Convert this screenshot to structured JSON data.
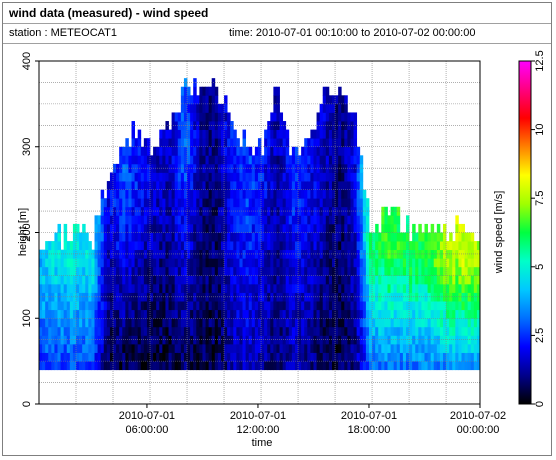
{
  "header": {
    "title": "wind data (measured) - wind speed",
    "station": "station : METEOCAT1",
    "time_range": "time: 2010-07-01 00:10:00 to 2010-07-02 00:00:00"
  },
  "chart_data": {
    "type": "heatmap",
    "xlabel": "time",
    "ylabel": "height [m]",
    "colorbar_label": "wind speed [m/s]",
    "x_range": [
      "2010-07-01 00:10:00",
      "2010-07-02 00:00:00"
    ],
    "ylim": [
      0,
      400
    ],
    "y_ticks": [
      0,
      100,
      200,
      300,
      400
    ],
    "y_tick_labels": [
      "0",
      "100",
      "200",
      "300",
      "400"
    ],
    "x_ticks": [
      "2010-07-01 06:00:00",
      "2010-07-01 12:00:00",
      "2010-07-01 18:00:00",
      "2010-07-02 00:00:00"
    ],
    "x_tick_labels": [
      {
        "date": "2010-07-01",
        "time": "06:00:00"
      },
      {
        "date": "2010-07-01",
        "time": "12:00:00"
      },
      {
        "date": "2010-07-01",
        "time": "18:00:00"
      },
      {
        "date": "2010-07-02",
        "time": "00:00:00"
      }
    ],
    "colorbar_range": [
      0,
      12.5
    ],
    "colorbar_ticks": [
      0,
      2.5,
      5,
      7.5,
      10,
      12.5
    ],
    "colorbar_tick_labels": [
      "0",
      "2.5",
      "5",
      "7.5",
      "10",
      "12.5"
    ],
    "colorscale": [
      "#000000",
      "#00008b",
      "#0000ff",
      "#0070ff",
      "#00c8ff",
      "#00ffc8",
      "#00ff40",
      "#a0ff00",
      "#ffff00",
      "#ff8000",
      "#ff0000",
      "#ff0080",
      "#ff00ff"
    ],
    "grid": true,
    "bin_height_m": 10,
    "time_bin_minutes": 10,
    "columns": [
      {
        "time": "2010-07-01 00:10:00",
        "top_m": 180,
        "speed": 4.0,
        "lower_speed": 2.5
      },
      {
        "time": "2010-07-01 01:00:00",
        "top_m": 190,
        "speed": 4.6,
        "lower_speed": 2.7
      },
      {
        "time": "2010-07-01 02:00:00",
        "top_m": 200,
        "speed": 4.8,
        "lower_speed": 2.8
      },
      {
        "time": "2010-07-01 03:00:00",
        "top_m": 190,
        "speed": 4.4,
        "lower_speed": 2.6
      },
      {
        "time": "2010-07-01 03:50:00",
        "top_m": 260,
        "speed": 1.8,
        "lower_speed": 0.6
      },
      {
        "time": "2010-07-01 04:40:00",
        "top_m": 300,
        "speed": 2.8,
        "lower_speed": 0.5
      },
      {
        "time": "2010-07-01 05:30:00",
        "top_m": 310,
        "speed": 2.2,
        "lower_speed": 0.4
      },
      {
        "time": "2010-07-01 06:20:00",
        "top_m": 290,
        "speed": 1.6,
        "lower_speed": 0.4
      },
      {
        "time": "2010-07-01 07:10:00",
        "top_m": 320,
        "speed": 1.5,
        "lower_speed": 0.5
      },
      {
        "time": "2010-07-01 08:00:00",
        "top_m": 365,
        "speed": 3.0,
        "lower_speed": 0.7
      },
      {
        "time": "2010-07-01 08:50:00",
        "top_m": 365,
        "speed": 1.2,
        "lower_speed": 0.6
      },
      {
        "time": "2010-07-01 09:40:00",
        "top_m": 365,
        "speed": 1.0,
        "lower_speed": 0.5
      },
      {
        "time": "2010-07-01 10:30:00",
        "top_m": 320,
        "speed": 2.3,
        "lower_speed": 1.2
      },
      {
        "time": "2010-07-01 11:20:00",
        "top_m": 300,
        "speed": 2.6,
        "lower_speed": 1.6
      },
      {
        "time": "2010-07-01 12:10:00",
        "top_m": 290,
        "speed": 2.2,
        "lower_speed": 1.2
      },
      {
        "time": "2010-07-01 13:00:00",
        "top_m": 365,
        "speed": 1.3,
        "lower_speed": 0.8
      },
      {
        "time": "2010-07-01 13:50:00",
        "top_m": 280,
        "speed": 2.4,
        "lower_speed": 1.3
      },
      {
        "time": "2010-07-01 14:40:00",
        "top_m": 310,
        "speed": 2.0,
        "lower_speed": 1.1
      },
      {
        "time": "2010-07-01 15:30:00",
        "top_m": 355,
        "speed": 1.6,
        "lower_speed": 0.7
      },
      {
        "time": "2010-07-01 16:20:00",
        "top_m": 360,
        "speed": 0.9,
        "lower_speed": 0.5
      },
      {
        "time": "2010-07-01 17:10:00",
        "top_m": 330,
        "speed": 1.9,
        "lower_speed": 1.0
      },
      {
        "time": "2010-07-01 18:00:00",
        "top_m": 200,
        "speed": 5.8,
        "lower_speed": 3.0
      },
      {
        "time": "2010-07-01 19:00:00",
        "top_m": 220,
        "speed": 6.6,
        "lower_speed": 3.3
      },
      {
        "time": "2010-07-01 20:00:00",
        "top_m": 200,
        "speed": 6.0,
        "lower_speed": 3.2
      },
      {
        "time": "2010-07-01 21:00:00",
        "top_m": 205,
        "speed": 6.2,
        "lower_speed": 3.4
      },
      {
        "time": "2010-07-01 22:00:00",
        "top_m": 200,
        "speed": 7.4,
        "lower_speed": 3.5
      },
      {
        "time": "2010-07-01 23:00:00",
        "top_m": 200,
        "speed": 7.8,
        "lower_speed": 3.6
      },
      {
        "time": "2010-07-02 00:00:00",
        "top_m": 190,
        "speed": 7.2,
        "lower_speed": 3.5
      }
    ],
    "min_height_m": 40
  }
}
